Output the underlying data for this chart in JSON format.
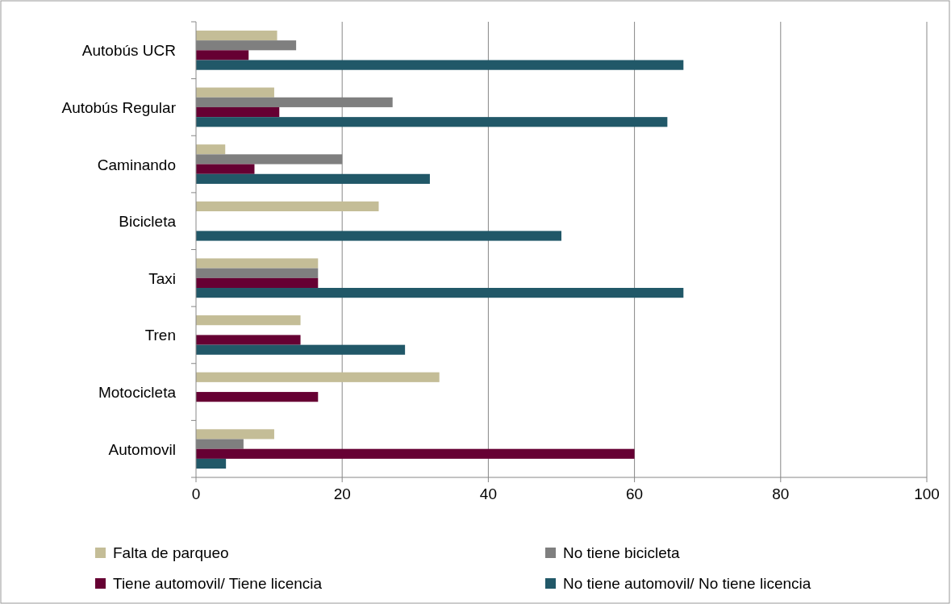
{
  "chart_data": {
    "type": "bar",
    "orientation": "horizontal",
    "categories": [
      "Autobús UCR",
      "Autobús Regular",
      "Caminando",
      "Bicicleta",
      "Taxi",
      "Tren",
      "Motocicleta",
      "Automovil"
    ],
    "series": [
      {
        "name": "Falta de parqueo",
        "color": "#c4bd97",
        "values": [
          11.1,
          10.7,
          4.0,
          25.0,
          16.7,
          14.3,
          33.3,
          10.7
        ]
      },
      {
        "name": "No tiene bicicleta",
        "color": "#7f7f7f",
        "values": [
          13.7,
          26.9,
          20.0,
          null,
          16.7,
          null,
          null,
          6.5
        ]
      },
      {
        "name": "Tiene automovil/ Tiene licencia",
        "color": "#660033",
        "values": [
          7.2,
          11.4,
          8.0,
          null,
          16.7,
          14.3,
          16.7,
          60.0
        ]
      },
      {
        "name": "No tiene automovil/ No tiene licencia",
        "color": "#215868",
        "values": [
          66.7,
          64.5,
          32.0,
          50.0,
          66.7,
          28.6,
          null,
          4.1
        ]
      }
    ],
    "xlim": [
      0,
      100
    ],
    "xticks": [
      0,
      20,
      40,
      60,
      80,
      100
    ],
    "grid": "x",
    "legend": "bottom"
  }
}
